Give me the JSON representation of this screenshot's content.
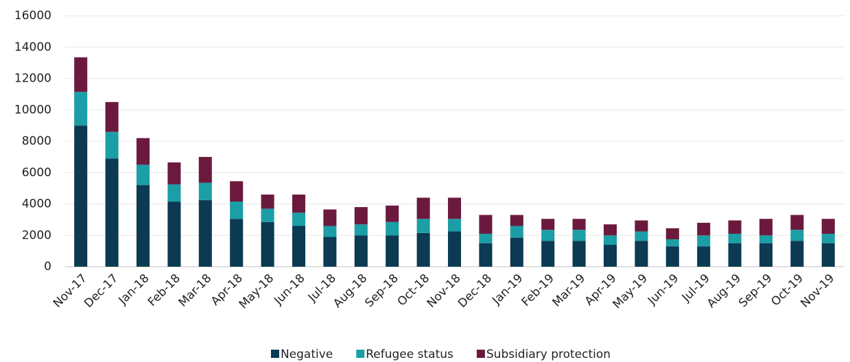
{
  "chart_data": {
    "type": "bar",
    "stacked": true,
    "categories": [
      "Nov-17",
      "Dec-17",
      "Jan-18",
      "Feb-18",
      "Mar-18",
      "Apr-18",
      "May-18",
      "Jun-18",
      "Jul-18",
      "Aug-18",
      "Sep-18",
      "Oct-18",
      "Nov-18",
      "Dec-18",
      "Jan-19",
      "Feb-19",
      "Mar-19",
      "Apr-19",
      "May-19",
      "Jun-19",
      "Jul-19",
      "Aug-19",
      "Sep-19",
      "Oct-19",
      "Nov-19"
    ],
    "series": [
      {
        "name": "Negative",
        "color": "#0b3a52",
        "values": [
          9000,
          6900,
          5200,
          4150,
          4250,
          3050,
          2850,
          2600,
          1900,
          2000,
          2000,
          2150,
          2250,
          1500,
          1850,
          1650,
          1650,
          1400,
          1650,
          1300,
          1300,
          1500,
          1500,
          1650,
          1500
        ]
      },
      {
        "name": "Refugee status",
        "color": "#1b9ea6",
        "values": [
          2150,
          1700,
          1300,
          1100,
          1100,
          1100,
          850,
          850,
          700,
          700,
          850,
          900,
          800,
          600,
          750,
          700,
          700,
          600,
          600,
          450,
          700,
          600,
          500,
          700,
          600
        ]
      },
      {
        "name": "Subsidiary protection",
        "color": "#6b1a3d",
        "values": [
          2200,
          1900,
          1700,
          1400,
          1650,
          1300,
          900,
          1150,
          1050,
          1100,
          1050,
          1350,
          1350,
          1200,
          700,
          700,
          700,
          700,
          700,
          700,
          800,
          850,
          1050,
          950,
          950
        ]
      }
    ],
    "ylim": [
      0,
      16000
    ],
    "yticks": [
      0,
      2000,
      4000,
      6000,
      8000,
      10000,
      12000,
      14000,
      16000
    ],
    "grid": true,
    "legend": "bottom"
  }
}
